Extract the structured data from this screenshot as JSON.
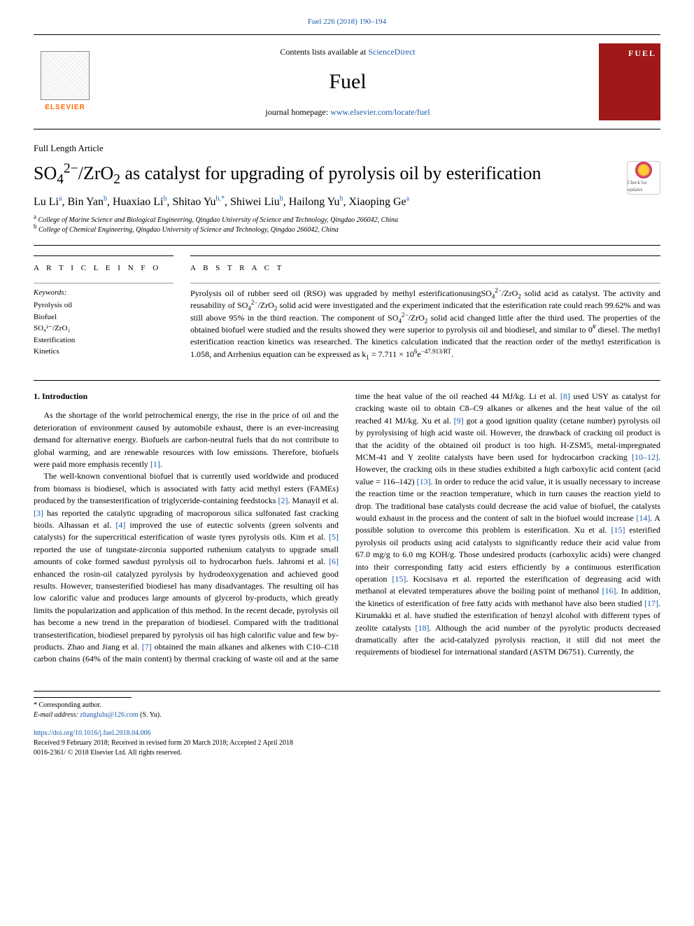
{
  "colors": {
    "link": "#1a5cad",
    "elsevier_orange": "#ff6a00",
    "cover_bg": "#a01818",
    "text": "#000000",
    "bg": "#ffffff",
    "rule": "#000000",
    "subrule": "#999999"
  },
  "header": {
    "journal_ref": "Fuel 226 (2018) 190–194",
    "contents_prefix": "Contents lists available at ",
    "contents_link_text": "ScienceDirect",
    "journal_name": "Fuel",
    "homepage_prefix": "journal homepage: ",
    "homepage_link_text": "www.elsevier.com/locate/fuel",
    "publisher_name": "ELSEVIER",
    "cover_text": "FUEL"
  },
  "article": {
    "type": "Full Length Article",
    "title_html": "SO<sub>4</sub><sup>2−</sup>/ZrO<sub>2</sub> as catalyst for upgrading of pyrolysis oil by esterification",
    "check_updates_label": "Check for updates",
    "authors_html": "Lu Li<sup>a</sup>, Bin Yan<sup>b</sup>, Huaxiao Li<sup>b</sup>, Shitao Yu<sup>b,*</sup>, Shiwei Liu<sup>b</sup>, Hailong Yu<sup>b</sup>, Xiaoping Ge<sup>a</sup>",
    "affiliations": [
      {
        "sup": "a",
        "text": "College of Marine Science and Biological Engineering, Qingdao University of Science and Technology, Qingdao 266042, China"
      },
      {
        "sup": "b",
        "text": "College of Chemical Engineering, Qingdao University of Science and Technology, Qingdao 266042, China"
      }
    ]
  },
  "info": {
    "heading": "A R T I C L E  I N F O",
    "kw_label": "Keywords:",
    "keywords": [
      "Pyrolysis oil",
      "Biofuel",
      "SO₄²⁻/ZrO₂",
      "Esterification",
      "Kinetics"
    ]
  },
  "abstract": {
    "heading": "A B S T R A C T",
    "text_html": "Pyrolysis oil of rubber seed oil (RSO) was upgraded by methyl esterificationusingSO<sub>4</sub><sup>2−</sup>/ZrO<sub>2</sub> solid acid as catalyst. The activity and reusability of SO<sub>4</sub><sup>2−</sup>/ZrO<sub>2</sub> solid acid were investigated and the experiment indicated that the esterification rate could reach 99.62% and was still above 95% in the third reaction. The component of SO<sub>4</sub><sup>2−</sup>/ZrO<sub>2</sub> solid acid changed little after the third used. The properties of the obtained biofuel were studied and the results showed they were superior to pyrolysis oil and biodiesel, and similar to 0<sup>#</sup> diesel. The methyl esterification reaction kinetics was researched. The kinetics calculation indicated that the reaction order of the methyl esterification is 1.058, and Arrhenius equation can be expressed as k<sub>1</sub> = 7.711 × 10<sup>6</sup>e<sup>−47.913/RT</sup>."
  },
  "body": {
    "section_number": "1.",
    "section_title": "Introduction",
    "paragraphs_html": [
      "As the shortage of the world petrochemical energy, the rise in the price of oil and the deterioration of environment caused by automobile exhaust, there is an ever-increasing demand for alternative energy. Biofuels are carbon-neutral fuels that do not contribute to global warming, and are renewable resources with low emissions. Therefore, biofuels were paid more emphasis recently <a class=\"ref\" data-name=\"ref-link\" data-interactable=\"true\">[1]</a>.",
      "The well-known conventional biofuel that is currently used worldwide and produced from biomass is biodiesel, which is associated with fatty acid methyl esters (FAMEs) produced by the transesterification of triglyceride-containing feedstocks <a class=\"ref\" data-name=\"ref-link\" data-interactable=\"true\">[2]</a>. Manayil et al. <a class=\"ref\" data-name=\"ref-link\" data-interactable=\"true\">[3]</a> has reported the catalytic upgrading of macroporous silica sulfonated fast cracking bioils. Alhassan et al. <a class=\"ref\" data-name=\"ref-link\" data-interactable=\"true\">[4]</a> improved the use of eutectic solvents (green solvents and catalysts) for the supercritical esterification of waste tyres pyrolysis oils. Kim et al. <a class=\"ref\" data-name=\"ref-link\" data-interactable=\"true\">[5]</a> reported the use of tungstate-zirconia supported ruthenium catalysts to upgrade small amounts of coke formed sawdust pyrolysis oil to hydrocarbon fuels. Jahromi et al. <a class=\"ref\" data-name=\"ref-link\" data-interactable=\"true\">[6]</a> enhanced the rosin-oil catalyzed pyrolysis by hydrodeoxygenation and achieved good results. However, transesterified biodiesel has many disadvantages. The resulting oil has low calorific value and produces large amounts of glycerol by-products, which greatly limits the popularization and application of this method. In the recent decade, pyrolysis oil has become a new trend in the preparation of biodiesel. Compared with the traditional transesterification, biodiesel prepared by pyrolysis oil has high calorific value and few by-products. Zhao and Jiang et al. <a class=\"ref\" data-name=\"ref-link\" data-interactable=\"true\">[7]</a> obtained the main alkanes and alkenes with C10–C18 carbon chains (64% of the main content) by thermal cracking of waste oil and at the same time the heat value of the oil reached 44 MJ/kg. Li et al. <a class=\"ref\" data-name=\"ref-link\" data-interactable=\"true\">[8]</a> used USY as catalyst for cracking waste oil to obtain C8–C9 alkanes or alkenes and the heat value of the oil reached 41 MJ/kg. Xu et al. <a class=\"ref\" data-name=\"ref-link\" data-interactable=\"true\">[9]</a> got a good ignition quality (cetane number) pyrolysis oil by pyrolysising of high acid waste oil. However, the drawback of cracking oil product is that the acidity of the obtained oil product is too high. H-ZSM5, metal-impregnated MCM-41 and Y zeolite catalysts have been used for hydrocarbon cracking <a class=\"ref\" data-name=\"ref-link\" data-interactable=\"true\">[10–12]</a>. However, the cracking oils in these studies exhibited a high carboxylic acid content (acid value = 116–142) <a class=\"ref\" data-name=\"ref-link\" data-interactable=\"true\">[13]</a>. In order to reduce the acid value, it is usually necessary to increase the reaction time or the reaction temperature, which in turn causes the reaction yield to drop. The traditional base catalysts could decrease the acid value of biofuel, the catalysts would exhaust in the process and the content of salt in the biofuel would increase <a class=\"ref\" data-name=\"ref-link\" data-interactable=\"true\">[14]</a>. A possible solution to overcome this problem is esterification. Xu et al. <a class=\"ref\" data-name=\"ref-link\" data-interactable=\"true\">[15]</a> esterified pyrolysis oil products using acid catalysts to significantly reduce their acid value from 67.0 mg/g to 6.0 mg KOH/g. Those undesired products (carboxylic acids) were changed into their corresponding fatty acid esters efficiently by a continuous esterification operation <a class=\"ref\" data-name=\"ref-link\" data-interactable=\"true\">[15]</a>. Kocsisava et al. reported the esterification of degreasing acid with methanol at elevated temperatures above the boiling point of methanol <a class=\"ref\" data-name=\"ref-link\" data-interactable=\"true\">[16]</a>. In addition, the kinetics of esterification of free fatty acids with methanol have also been studied <a class=\"ref\" data-name=\"ref-link\" data-interactable=\"true\">[17]</a>. Kirumakki et al. have studied the esterification of benzyl alcohol with different types of zeolite catalysts <a class=\"ref\" data-name=\"ref-link\" data-interactable=\"true\">[18]</a>. Although the acid number of the pyrolytic products decreased dramatically after the acid-catalyzed pyrolysis reaction, it still did not meet the requirements of biodiesel for international standard (ASTM D6751). Currently, the"
    ]
  },
  "footer": {
    "corresponding": "* Corresponding author.",
    "email_label": "E-mail address: ",
    "email": "zhanglulu@126.com",
    "email_suffix": " (S. Yu).",
    "doi": "https://doi.org/10.1016/j.fuel.2018.04.006",
    "received": "Received 9 February 2018; Received in revised form 20 March 2018; Accepted 2 April 2018",
    "issn_copyright": "0016-2361/ © 2018 Elsevier Ltd. All rights reserved."
  }
}
